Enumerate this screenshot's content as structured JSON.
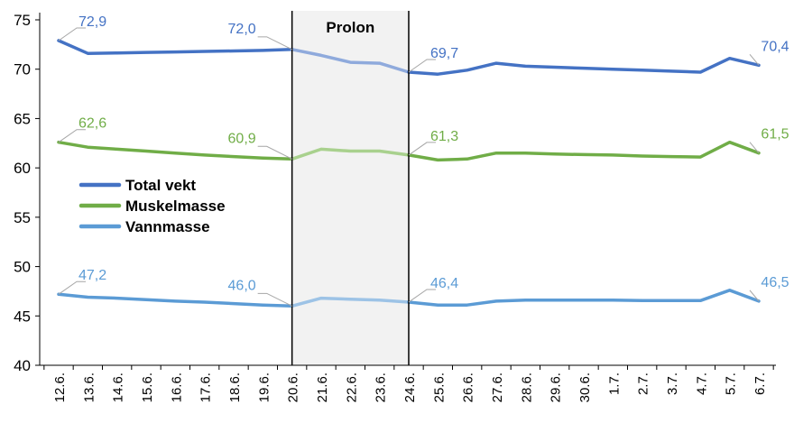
{
  "chart_data": {
    "type": "line",
    "categories": [
      "12.6.",
      "13.6.",
      "14.6.",
      "15.6.",
      "16.6.",
      "17.6.",
      "18.6.",
      "19.6.",
      "20.6.",
      "21.6.",
      "22.6.",
      "23.6.",
      "24.6.",
      "25.6.",
      "26.6.",
      "27.6.",
      "28.6.",
      "29.6.",
      "30.6.",
      "1.7.",
      "2.7.",
      "3.7.",
      "4.7.",
      "5.7.",
      "6.7."
    ],
    "ylim": [
      40,
      75
    ],
    "yticks": [
      40,
      45,
      50,
      55,
      60,
      65,
      70,
      75
    ],
    "grid": false,
    "legend_position": "left",
    "shaded_period": {
      "start": "20.6.",
      "end": "24.6.",
      "label": "Prolon",
      "color": "#f2f2f2"
    },
    "series": [
      {
        "name": "Total vekt",
        "color": "#4472c4",
        "highlight_color": "#8faadc",
        "values": [
          72.9,
          71.6,
          71.65,
          71.7,
          71.75,
          71.8,
          71.85,
          71.9,
          72.0,
          71.4,
          70.7,
          70.6,
          69.7,
          69.5,
          69.9,
          70.6,
          70.3,
          70.2,
          70.1,
          70.0,
          69.9,
          69.8,
          69.7,
          71.1,
          70.4
        ]
      },
      {
        "name": "Muskelmasse",
        "color": "#70ad47",
        "highlight_color": "#a9d18e",
        "values": [
          62.6,
          62.1,
          61.9,
          61.7,
          61.5,
          61.3,
          61.15,
          61.0,
          60.9,
          61.9,
          61.7,
          61.7,
          61.3,
          60.8,
          60.9,
          61.5,
          61.5,
          61.4,
          61.35,
          61.3,
          61.2,
          61.15,
          61.1,
          62.6,
          61.5
        ]
      },
      {
        "name": "Vannmasse",
        "color": "#5b9bd5",
        "highlight_color": "#9dc3e6",
        "values": [
          47.2,
          46.9,
          46.8,
          46.65,
          46.5,
          46.4,
          46.25,
          46.1,
          46.0,
          46.8,
          46.7,
          46.6,
          46.4,
          46.1,
          46.1,
          46.5,
          46.6,
          46.6,
          46.6,
          46.6,
          46.55,
          46.55,
          46.55,
          47.6,
          46.5
        ]
      }
    ],
    "data_labels": [
      {
        "series": 0,
        "index": 0,
        "text": "72,9"
      },
      {
        "series": 0,
        "index": 8,
        "text": "72,0"
      },
      {
        "series": 0,
        "index": 12,
        "text": "69,7"
      },
      {
        "series": 0,
        "index": 24,
        "text": "70,4"
      },
      {
        "series": 1,
        "index": 0,
        "text": "62,6"
      },
      {
        "series": 1,
        "index": 8,
        "text": "60,9"
      },
      {
        "series": 1,
        "index": 12,
        "text": "61,3"
      },
      {
        "series": 1,
        "index": 24,
        "text": "61,5"
      },
      {
        "series": 2,
        "index": 0,
        "text": "47,2"
      },
      {
        "series": 2,
        "index": 8,
        "text": "46,0"
      },
      {
        "series": 2,
        "index": 12,
        "text": "46,4"
      },
      {
        "series": 2,
        "index": 24,
        "text": "46,5"
      }
    ]
  }
}
